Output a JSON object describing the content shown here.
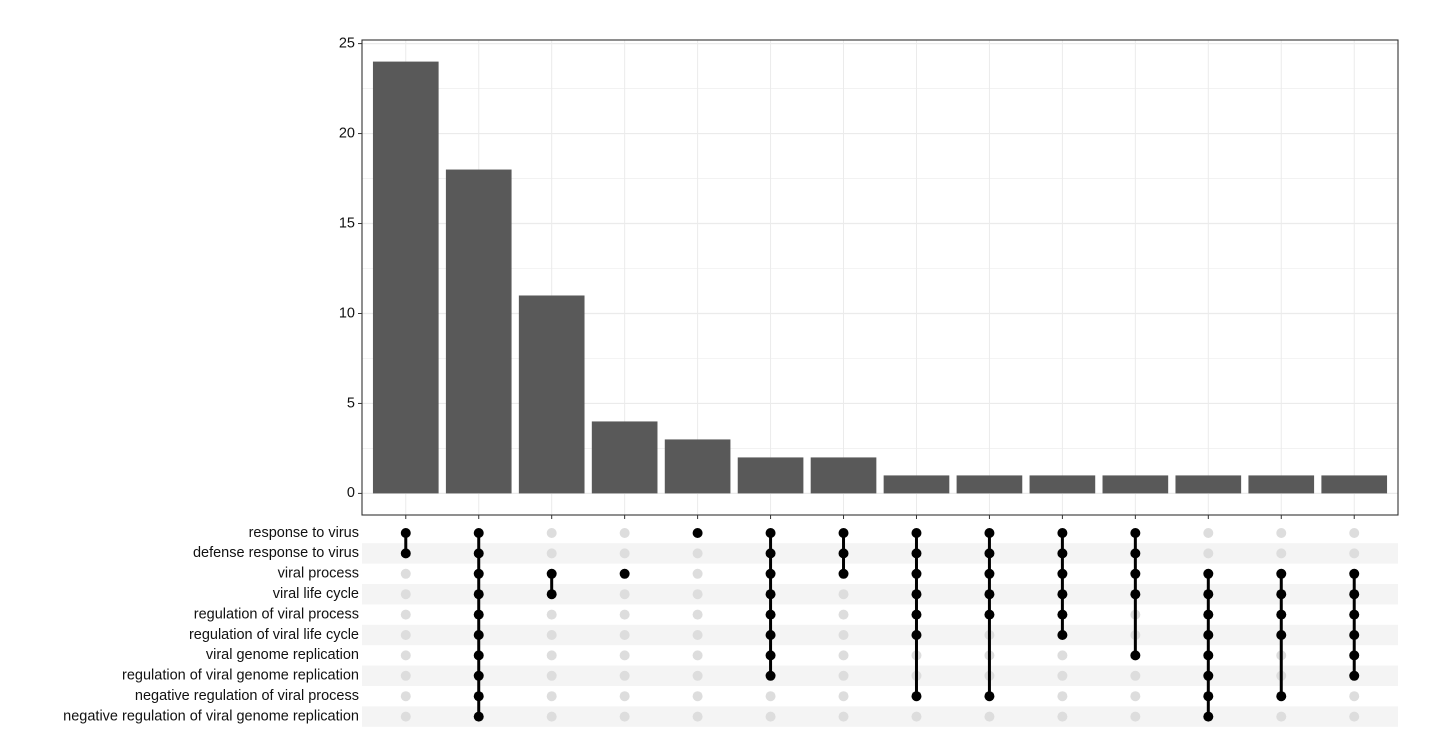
{
  "chart_data": {
    "type": "upset",
    "values": [
      24,
      18,
      11,
      4,
      3,
      2,
      2,
      1,
      1,
      1,
      1,
      1,
      1,
      1
    ],
    "color": "#595959",
    "ylim": [
      -1.2,
      25.2
    ],
    "yticks": [
      0,
      5,
      10,
      15,
      20,
      25
    ],
    "grid": true,
    "sets": [
      "response to virus",
      "defense response to virus",
      "viral process",
      "viral life cycle",
      "regulation of viral process",
      "regulation of viral life cycle",
      "viral genome replication",
      "regulation of viral genome replication",
      "negative regulation of viral process",
      "negative regulation of viral genome replication"
    ],
    "intersections": [
      [
        0,
        1
      ],
      [
        0,
        1,
        2,
        3,
        4,
        5,
        6,
        7,
        8,
        9
      ],
      [
        2,
        3
      ],
      [
        2
      ],
      [
        0
      ],
      [
        0,
        1,
        2,
        3,
        4,
        5,
        6,
        7
      ],
      [
        0,
        1,
        2
      ],
      [
        0,
        1,
        2,
        3,
        4,
        5,
        8
      ],
      [
        0,
        1,
        2,
        3,
        4,
        8
      ],
      [
        0,
        1,
        2,
        3,
        4,
        5
      ],
      [
        0,
        1,
        2,
        3,
        6
      ],
      [
        2,
        3,
        4,
        5,
        6,
        7,
        8,
        9
      ],
      [
        2,
        3,
        4,
        5,
        8
      ],
      [
        2,
        3,
        4,
        5,
        6,
        7
      ]
    ],
    "dot_color": "#000000",
    "empty_dot_color": "#dddddd",
    "stripe_color": "#f4f4f4"
  }
}
